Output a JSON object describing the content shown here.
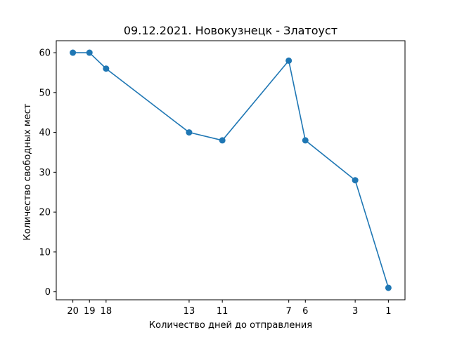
{
  "chart_data": {
    "type": "line",
    "title": "09.12.2021. Новокузнецк - Златоуст",
    "xlabel": "Количество дней до отправления",
    "ylabel": "Количество свободных мест",
    "x_inverted": true,
    "xlim": [
      21,
      0
    ],
    "ylim": [
      -2,
      63
    ],
    "x_ticks": [
      20,
      19,
      18,
      13,
      11,
      7,
      6,
      3,
      1
    ],
    "y_ticks": [
      0,
      10,
      20,
      30,
      40,
      50,
      60
    ],
    "grid": false,
    "color": "#1f77b4",
    "series": [
      {
        "x": [
          20,
          19,
          18,
          13,
          11,
          7,
          6,
          3,
          1
        ],
        "y": [
          60,
          60,
          56,
          40,
          38,
          58,
          38,
          28,
          1
        ]
      }
    ]
  }
}
